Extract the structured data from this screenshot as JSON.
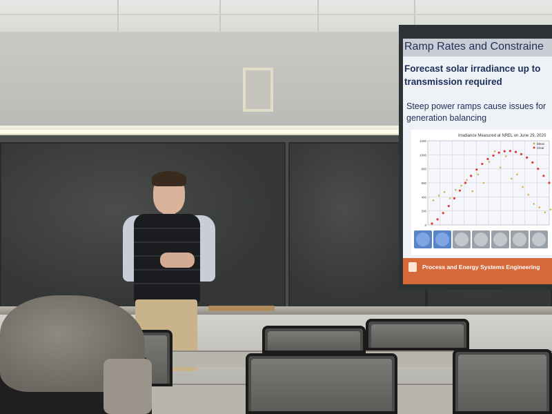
{
  "slide": {
    "title": "Ramp Rates and Constraine",
    "heading": "Forecast solar irradiance up to transmission required",
    "bullet": "Steep power ramps cause issues for generation balancing",
    "chart_title": "Irradiance Measured at NREL on June 29, 2020",
    "footer": "Process and Energy Systems Engineering"
  },
  "colors": {
    "slide_title_text": "#1f2f55",
    "footer_bg": "#d6693a",
    "clearsky_curve": "#d93a3a",
    "measured_points": "#d8b04a"
  },
  "chart_data": {
    "type": "scatter",
    "title": "Irradiance Measured at NREL on June 29, 2020",
    "ylim": [
      0,
      1200
    ],
    "yticks": [
      0,
      200,
      400,
      600,
      800,
      1000,
      1200
    ],
    "series": [
      {
        "name": "Clear",
        "values": [
          20,
          80,
          170,
          270,
          380,
          490,
          600,
          700,
          790,
          870,
          940,
          990,
          1030,
          1050,
          1055,
          1040,
          1010,
          960,
          890,
          800,
          700,
          600
        ]
      },
      {
        "name": "Meas",
        "values": [
          350,
          420,
          470,
          380,
          500,
          560,
          640,
          480,
          720,
          600,
          900,
          1050,
          820,
          980,
          660,
          720,
          540,
          430,
          300,
          250,
          180,
          220
        ]
      }
    ]
  }
}
